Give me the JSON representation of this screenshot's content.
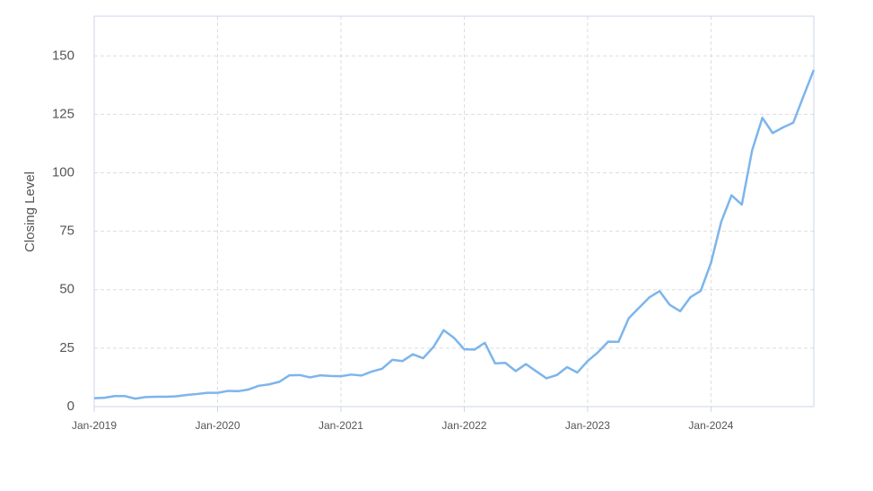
{
  "chart_data": {
    "type": "line",
    "y_label": "Closing Level",
    "x": [
      "2019-01",
      "2019-02",
      "2019-03",
      "2019-04",
      "2019-05",
      "2019-06",
      "2019-07",
      "2019-08",
      "2019-09",
      "2019-10",
      "2019-11",
      "2019-12",
      "2020-01",
      "2020-02",
      "2020-03",
      "2020-04",
      "2020-05",
      "2020-06",
      "2020-07",
      "2020-08",
      "2020-09",
      "2020-10",
      "2020-11",
      "2020-12",
      "2021-01",
      "2021-02",
      "2021-03",
      "2021-04",
      "2021-05",
      "2021-06",
      "2021-07",
      "2021-08",
      "2021-09",
      "2021-10",
      "2021-11",
      "2021-12",
      "2022-01",
      "2022-02",
      "2022-03",
      "2022-04",
      "2022-05",
      "2022-06",
      "2022-07",
      "2022-08",
      "2022-09",
      "2022-10",
      "2022-11",
      "2022-12",
      "2023-01",
      "2023-02",
      "2023-03",
      "2023-04",
      "2023-05",
      "2023-06",
      "2023-07",
      "2023-08",
      "2023-09",
      "2023-10",
      "2023-11",
      "2023-12",
      "2024-01",
      "2024-02",
      "2024-03",
      "2024-04",
      "2024-05",
      "2024-06",
      "2024-07",
      "2024-08",
      "2024-09",
      "2024-10",
      "2024-11"
    ],
    "series": [
      {
        "color": "#7cb5ec",
        "values": [
          3.6,
          3.8,
          4.5,
          4.5,
          3.4,
          4.1,
          4.2,
          4.2,
          4.4,
          5.0,
          5.4,
          5.9,
          5.9,
          6.7,
          6.6,
          7.3,
          8.9,
          9.5,
          10.6,
          13.4,
          13.5,
          12.5,
          13.4,
          13.1,
          13.0,
          13.7,
          13.3,
          15.0,
          16.2,
          20.0,
          19.5,
          22.4,
          20.7,
          25.5,
          32.7,
          29.4,
          24.5,
          24.4,
          27.3,
          18.5,
          18.7,
          15.2,
          18.2,
          15.1,
          12.1,
          13.5,
          16.9,
          14.6,
          19.5,
          23.2,
          27.8,
          27.7,
          37.8,
          42.3,
          46.7,
          49.4,
          43.5,
          40.8,
          46.8,
          49.5,
          61.5,
          79.1,
          90.4,
          86.4,
          109.6,
          123.5,
          117.0,
          119.4,
          121.4,
          132.8,
          144
        ]
      }
    ],
    "xlim": [
      "2019-01",
      "2024-11"
    ],
    "xticks": [
      {
        "value": "2019-01",
        "label": "Jan-2019"
      },
      {
        "value": "2020-01",
        "label": "Jan-2020"
      },
      {
        "value": "2021-01",
        "label": "Jan-2021"
      },
      {
        "value": "2022-01",
        "label": "Jan-2022"
      },
      {
        "value": "2023-01",
        "label": "Jan-2023"
      },
      {
        "value": "2024-01",
        "label": "Jan-2024"
      }
    ],
    "ylim": [
      0,
      167
    ],
    "yticks": [
      0,
      25,
      50,
      75,
      100,
      125,
      150
    ],
    "grid": true
  }
}
